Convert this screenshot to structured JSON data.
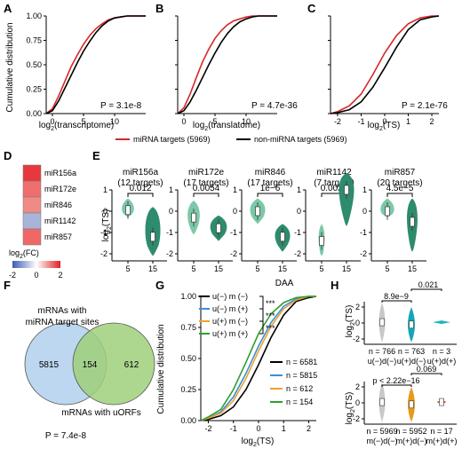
{
  "panels": {
    "A": {
      "label": "A",
      "ylabel": "Cumulative distribution",
      "xlabel": "log",
      "xlabel_sub": "2",
      "xlabel_rest": "(transcriptome)",
      "pvalue": "P = 3.1e-8"
    },
    "B": {
      "label": "B",
      "xlabel": "log",
      "xlabel_sub": "2",
      "xlabel_rest": "(translatome)",
      "pvalue": "P = 4.7e-36"
    },
    "C": {
      "label": "C",
      "xlabel": "log",
      "xlabel_sub": "2",
      "xlabel_rest": "(TS)",
      "pvalue": "P = 2.1e-76"
    },
    "legend_top": {
      "red": "miRNA targets (5969)",
      "black": "non-miRNA targets (5969)"
    },
    "D": {
      "label": "D",
      "rows": [
        "miR156a",
        "miR172e",
        "miR846",
        "miR1142",
        "miR857"
      ],
      "colors": [
        "#e8383d",
        "#ee6f6d",
        "#f08a86",
        "#a9b4da",
        "#ee6966"
      ],
      "legend_title": "log",
      "legend_sub": "2",
      "legend_rest": "(FC)",
      "ticks": [
        "-2",
        "0",
        "2"
      ]
    },
    "E": {
      "label": "E",
      "xlabel": "DAA",
      "ylabel": "log",
      "ylabel_sub": "2",
      "ylabel_rest": "(TS)",
      "x_ticks": [
        "5",
        "15"
      ],
      "y_ticks": [
        "1",
        "0",
        "-1",
        "-2"
      ],
      "groups": [
        {
          "name": "miR156a",
          "targets": "(12 targets)",
          "p": "0.012"
        },
        {
          "name": "miR172e",
          "targets": "(17 targets)",
          "p": "0.0054"
        },
        {
          "name": "miR846",
          "targets": "(17 targets)",
          "p": "1e−6"
        },
        {
          "name": "miR1142",
          "targets": "(7 targets)",
          "p": "0.0023"
        },
        {
          "name": "miR857",
          "targets": "(20 targets)",
          "p": "4.5e−5"
        }
      ]
    },
    "F": {
      "label": "F",
      "left_title_1": "mRNAs with",
      "left_title_2": "miRNA target sites",
      "bottom_title": "mRNAs with uORFs",
      "left_count": "5815",
      "overlap_count": "154",
      "right_count": "612",
      "pvalue": "P = 7.4e-8"
    },
    "G": {
      "label": "G",
      "ylabel": "Cumulative distribution",
      "xlabel": "log",
      "xlabel_sub": "2",
      "xlabel_rest": "(TS)",
      "legend": [
        "u(−) m (−)",
        "u(−) m (+)",
        "u(+) m (−)",
        "u(+) m (+)"
      ],
      "stars": [
        "***",
        "***",
        "***"
      ],
      "counts": [
        "n = 6581",
        "n = 5815",
        "n = 612",
        "n = 154"
      ],
      "colors": [
        "#000000",
        "#3a8fd9",
        "#f0a030",
        "#2e9e2e"
      ]
    },
    "H": {
      "label": "H",
      "ylabel": "log",
      "ylabel_sub": "2",
      "ylabel_rest": "(TS)",
      "top": {
        "cats": [
          "u(−)d(−)",
          "u(+)d(−)",
          "u(+)d(+)"
        ],
        "ns": [
          "n = 766",
          "n = 763",
          "n = 3"
        ],
        "p1": "8.9e−9",
        "p2": "0.021",
        "colors": [
          "#c8c8c8",
          "#13a6b8",
          "#1fb5c2"
        ]
      },
      "bottom": {
        "cats": [
          "m(−)d(−)",
          "m(+)d(−)",
          "m(+)d(+)"
        ],
        "ns": [
          "n = 5969",
          "n = 5952",
          "n = 17"
        ],
        "p1": "p < 2.22e−16",
        "p2": "0.069",
        "colors": [
          "#c8c8c8",
          "#e79a1a",
          "#e0501a"
        ]
      },
      "y_ticks_top": [
        "2",
        "0",
        "-2"
      ],
      "y_ticks_bottom": [
        "2",
        "0",
        "-2"
      ]
    }
  },
  "chart_data": [
    {
      "type": "line",
      "panel": "A",
      "xlabel": "log2(transcriptome)",
      "ylabel": "Cumulative distribution",
      "xlim": [
        -1,
        15
      ],
      "ylim": [
        0,
        1
      ],
      "x_ticks": [
        0,
        5,
        10
      ],
      "y_ticks": [
        0.0,
        0.25,
        0.5,
        0.75,
        1.0
      ],
      "series": [
        {
          "name": "miRNA targets (5969)",
          "color": "#d62728",
          "x": [
            -1,
            0,
            1,
            2,
            3,
            4,
            5,
            6,
            7,
            8,
            9,
            10,
            11,
            12,
            15
          ],
          "y": [
            0,
            0.05,
            0.18,
            0.33,
            0.48,
            0.6,
            0.71,
            0.8,
            0.87,
            0.92,
            0.96,
            0.98,
            0.99,
            1,
            1
          ]
        },
        {
          "name": "non-miRNA targets (5969)",
          "color": "#000000",
          "x": [
            -1,
            0,
            1,
            2,
            3,
            4,
            5,
            6,
            7,
            8,
            9,
            10,
            11,
            12,
            15
          ],
          "y": [
            0,
            0.03,
            0.13,
            0.26,
            0.39,
            0.52,
            0.64,
            0.74,
            0.83,
            0.9,
            0.95,
            0.98,
            0.99,
            1,
            1
          ]
        }
      ]
    },
    {
      "type": "line",
      "panel": "B",
      "xlabel": "log2(translatome)",
      "xlim": [
        -1,
        15
      ],
      "ylim": [
        0,
        1
      ],
      "x_ticks": [
        0,
        5,
        10
      ],
      "series": [
        {
          "name": "miRNA targets (5969)",
          "color": "#d62728",
          "x": [
            -1,
            0,
            1,
            2,
            3,
            4,
            5,
            6,
            7,
            8,
            9,
            10,
            11,
            12,
            15
          ],
          "y": [
            0,
            0.06,
            0.2,
            0.37,
            0.53,
            0.66,
            0.77,
            0.85,
            0.91,
            0.95,
            0.97,
            0.99,
            1,
            1,
            1
          ]
        },
        {
          "name": "non-miRNA targets (5969)",
          "color": "#000000",
          "x": [
            -1,
            0,
            1,
            2,
            3,
            4,
            5,
            6,
            7,
            8,
            9,
            10,
            11,
            12,
            15
          ],
          "y": [
            0,
            0.03,
            0.12,
            0.24,
            0.37,
            0.5,
            0.62,
            0.73,
            0.82,
            0.89,
            0.94,
            0.97,
            0.99,
            1,
            1
          ]
        }
      ]
    },
    {
      "type": "line",
      "panel": "C",
      "xlabel": "log2(TS)",
      "xlim": [
        -2.3,
        2.3
      ],
      "ylim": [
        0,
        1
      ],
      "x_ticks": [
        -2,
        -1,
        0,
        1,
        2
      ],
      "series": [
        {
          "name": "miRNA targets (5969)",
          "color": "#d62728",
          "x": [
            -2.3,
            -2,
            -1.5,
            -1,
            -0.5,
            0,
            0.5,
            1,
            1.5,
            2,
            2.3
          ],
          "y": [
            0,
            0.02,
            0.08,
            0.2,
            0.4,
            0.62,
            0.8,
            0.92,
            0.98,
            1,
            1
          ]
        },
        {
          "name": "non-miRNA targets (5969)",
          "color": "#000000",
          "x": [
            -2.3,
            -2,
            -1.5,
            -1,
            -0.5,
            0,
            0.5,
            1,
            1.5,
            2,
            2.3
          ],
          "y": [
            0,
            0.01,
            0.04,
            0.12,
            0.27,
            0.47,
            0.68,
            0.86,
            0.96,
            0.99,
            1
          ]
        }
      ]
    },
    {
      "type": "line",
      "panel": "G",
      "xlabel": "log2(TS)",
      "ylabel": "Cumulative distribution",
      "xlim": [
        -2.3,
        2.3
      ],
      "ylim": [
        0,
        1
      ],
      "x_ticks": [
        -2,
        -1,
        0,
        1,
        2
      ],
      "y_ticks": [
        0.0,
        0.25,
        0.5,
        0.75,
        1.0
      ],
      "series": [
        {
          "name": "u(−) m (−)",
          "color": "#000000",
          "x": [
            -2.3,
            -2,
            -1.5,
            -1,
            -0.5,
            0,
            0.5,
            1,
            1.5,
            2,
            2.3
          ],
          "y": [
            0,
            0.01,
            0.04,
            0.11,
            0.25,
            0.45,
            0.67,
            0.85,
            0.96,
            0.99,
            1
          ]
        },
        {
          "name": "u(−) m (+)",
          "color": "#3a8fd9",
          "x": [
            -2.3,
            -2,
            -1.5,
            -1,
            -0.5,
            0,
            0.5,
            1,
            1.5,
            2,
            2.3
          ],
          "y": [
            0,
            0.02,
            0.07,
            0.19,
            0.38,
            0.6,
            0.79,
            0.92,
            0.98,
            1,
            1
          ]
        },
        {
          "name": "u(+) m (−)",
          "color": "#f0a030",
          "x": [
            -2.3,
            -2,
            -1.5,
            -1,
            -0.5,
            0,
            0.5,
            1,
            1.5,
            2,
            2.3
          ],
          "y": [
            0,
            0.02,
            0.06,
            0.16,
            0.34,
            0.56,
            0.76,
            0.9,
            0.97,
            1,
            1
          ]
        },
        {
          "name": "u(+) m (+)",
          "color": "#2e9e2e",
          "x": [
            -2.3,
            -2,
            -1.5,
            -1,
            -0.5,
            0,
            0.5,
            1,
            1.5,
            2,
            2.3
          ],
          "y": [
            0,
            0.03,
            0.09,
            0.25,
            0.47,
            0.7,
            0.86,
            0.95,
            0.99,
            1,
            1
          ]
        }
      ]
    }
  ]
}
